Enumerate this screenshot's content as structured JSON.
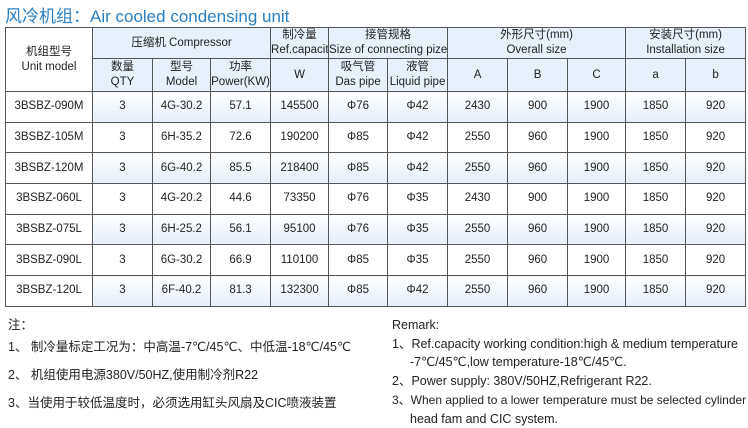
{
  "title": "风冷机组：Air cooled condensing unit",
  "headers": {
    "unit_model_cn": "机组型号",
    "unit_model_en": "Unit model",
    "compressor": "压缩机 Compressor",
    "ref_cn": "制冷量",
    "ref_en": "Ref.capacity",
    "pipe_cn": "接管规格",
    "pipe_en": "Size of connecting pize",
    "overall_cn": "外形尺寸(mm)",
    "overall_en": "Overall size",
    "install_cn": "安装尺寸(mm)",
    "install_en": "Installation size",
    "qty_cn": "数量",
    "qty_en": "QTY",
    "model_cn": "型号",
    "model_en": "Model",
    "power_cn": "功率",
    "power_en": "Power(KW)",
    "w": "W",
    "das_cn": "吸气管",
    "das_en": "Das pipe",
    "liq_cn": "液管",
    "liq_en": "Liquid pipe",
    "A": "A",
    "B": "B",
    "C": "C",
    "a": "a",
    "b": "b"
  },
  "rows": [
    [
      "3BSBZ-090M",
      "3",
      "4G-30.2",
      "57.1",
      "145500",
      "Φ76",
      "Φ42",
      "2430",
      "900",
      "1900",
      "1850",
      "920"
    ],
    [
      "3BSBZ-105M",
      "3",
      "6H-35.2",
      "72.6",
      "190200",
      "Φ85",
      "Φ42",
      "2550",
      "960",
      "1900",
      "1850",
      "920"
    ],
    [
      "3BSBZ-120M",
      "3",
      "6G-40.2",
      "85.5",
      "218400",
      "Φ85",
      "Φ42",
      "2550",
      "960",
      "1900",
      "1850",
      "920"
    ],
    [
      "3BSBZ-060L",
      "3",
      "4G-20.2",
      "44.6",
      "73350",
      "Φ76",
      "Φ35",
      "2430",
      "900",
      "1900",
      "1850",
      "920"
    ],
    [
      "3BSBZ-075L",
      "3",
      "6H-25.2",
      "56.1",
      "95100",
      "Φ76",
      "Φ35",
      "2550",
      "960",
      "1900",
      "1850",
      "920"
    ],
    [
      "3BSBZ-090L",
      "3",
      "6G-30.2",
      "66.9",
      "110100",
      "Φ85",
      "Φ35",
      "2550",
      "960",
      "1900",
      "1850",
      "920"
    ],
    [
      "3BSBZ-120L",
      "3",
      "6F-40.2",
      "81.3",
      "132300",
      "Φ85",
      "Φ42",
      "2550",
      "960",
      "1900",
      "1850",
      "920"
    ]
  ],
  "notes_cn": {
    "heading": "注：",
    "items": [
      "1、 制冷量标定工况为：中高温-7℃/45℃、中低温-18℃/45℃",
      "2、 机组使用电源380V/50HZ,使用制冷剂R22",
      "3、当使用于较低温度时，必须选用缸头风扇及CIC喷液装置"
    ]
  },
  "notes_en": {
    "heading": "Remark:",
    "items": [
      "1、Ref.capacity working condition:high & medium temperature",
      "-7℃/45℃,low temperature-18℃/45℃.",
      "2、Power supply: 380V/50HZ,Refrigerant R22.",
      "3、When applied to a lower temperature must be selected cylinder",
      "head fam and CIC system."
    ]
  }
}
